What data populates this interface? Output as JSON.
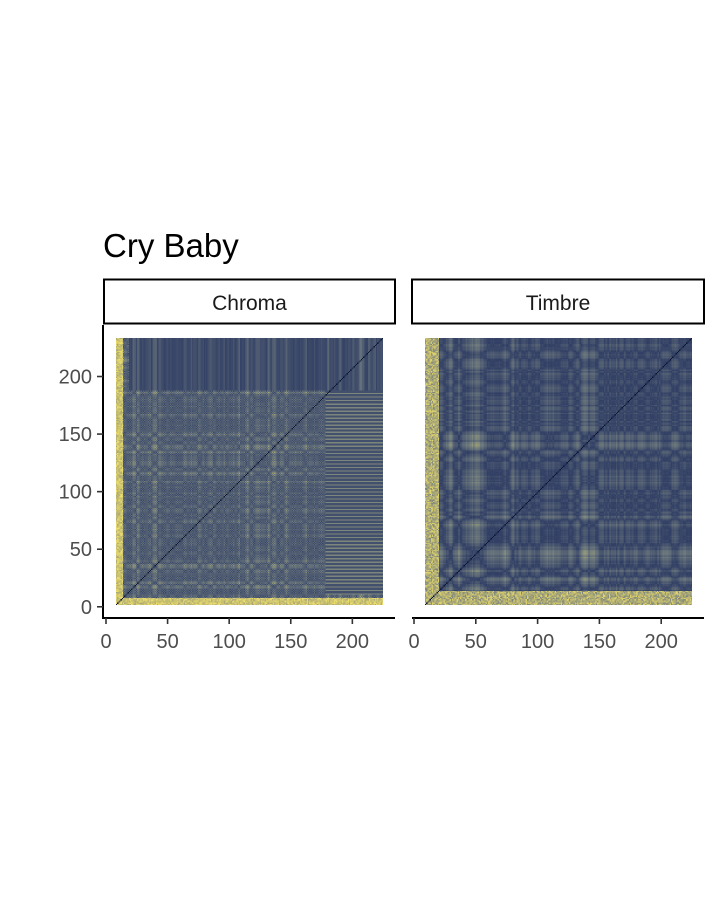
{
  "chart_data": {
    "type": "heatmap",
    "title": "Cry Baby",
    "xlabel": "",
    "ylabel": "",
    "n_segments": 228,
    "panels": [
      {
        "name": "Chroma"
      },
      {
        "name": "Timbre"
      }
    ],
    "x_ticks": [
      "0",
      "50",
      "100",
      "150",
      "200"
    ],
    "y_ticks": [
      "0",
      "50",
      "100",
      "150",
      "200"
    ],
    "xlim": [
      0,
      233
    ],
    "ylim": [
      -8,
      243
    ],
    "grid": false,
    "legend": "none",
    "colors": {
      "low": "#1f2d5e",
      "mid": "#6f7b7e",
      "high": "#f1e06a",
      "diagonal": "#0d1633"
    }
  }
}
